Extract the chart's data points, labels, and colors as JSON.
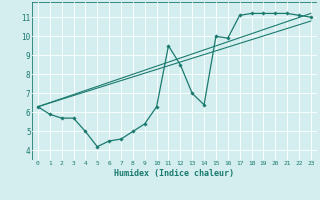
{
  "xlabel": "Humidex (Indice chaleur)",
  "bg_color": "#d4eef0",
  "line_color": "#1a7a6e",
  "grid_color": "#b0d8dc",
  "xlim": [
    -0.5,
    23.5
  ],
  "ylim": [
    3.5,
    11.8
  ],
  "xticks": [
    0,
    1,
    2,
    3,
    4,
    5,
    6,
    7,
    8,
    9,
    10,
    11,
    12,
    13,
    14,
    15,
    16,
    17,
    18,
    19,
    20,
    21,
    22,
    23
  ],
  "yticks": [
    4,
    5,
    6,
    7,
    8,
    9,
    10,
    11
  ],
  "line1_x": [
    0,
    1,
    2,
    3,
    4,
    5,
    6,
    7,
    8,
    9,
    10,
    11,
    12,
    13,
    14,
    15,
    16,
    17,
    18,
    19,
    20,
    21,
    22,
    23
  ],
  "line1_y": [
    6.3,
    5.9,
    5.7,
    5.7,
    5.0,
    4.2,
    4.5,
    4.6,
    5.0,
    5.4,
    6.3,
    9.5,
    8.5,
    7.0,
    6.4,
    10.0,
    9.9,
    11.1,
    11.2,
    11.2,
    11.2,
    11.2,
    11.1,
    11.0
  ],
  "line2_x": [
    0,
    23
  ],
  "line2_y": [
    6.3,
    11.2
  ],
  "line3_x": [
    0,
    23
  ],
  "line3_y": [
    6.3,
    10.8
  ]
}
